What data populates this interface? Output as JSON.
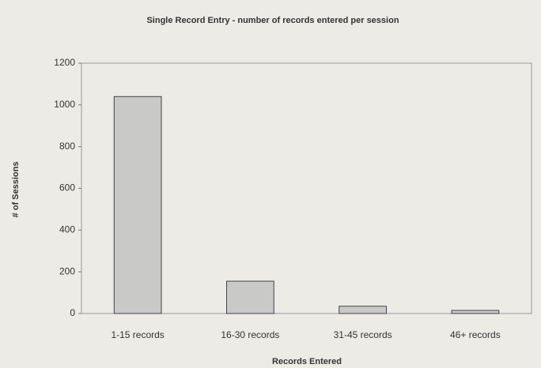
{
  "chart_data": {
    "type": "bar",
    "title": "Single Record Entry - number of records entered per session",
    "x_label": "Records Entered",
    "y_label": "# of Sessions",
    "categories": [
      "1-15 records",
      "16-30 records",
      "31-45 records",
      "46+ records"
    ],
    "values": [
      1040,
      155,
      35,
      15
    ],
    "color": "#c9c9c7",
    "ylim": [
      0,
      1200
    ],
    "yticks": [
      0,
      200,
      400,
      600,
      800,
      1000,
      1200
    ],
    "grid": false
  }
}
